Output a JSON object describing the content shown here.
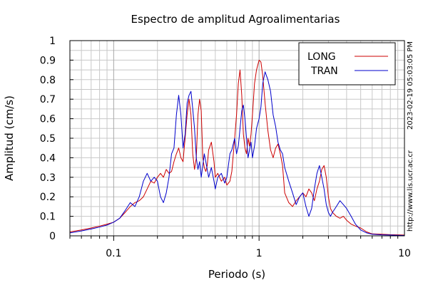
{
  "chart_data": {
    "type": "line",
    "title": "Espectro de amplitud Agroalimentarias",
    "xlabel": "Periodo (s)",
    "ylabel": "Amplitud (cm/s)",
    "x_scale": "log",
    "xlim": [
      0.05,
      10
    ],
    "ylim": [
      0,
      1
    ],
    "x_tick_labels": [
      "0.1",
      "1",
      "10"
    ],
    "x_tick_values": [
      0.1,
      1,
      10
    ],
    "y_tick_labels": [
      "0",
      "0.1",
      "0.2",
      "0.3",
      "0.4",
      "0.5",
      "0.6",
      "0.7",
      "0.8",
      "0.9",
      "1"
    ],
    "y_tick_values": [
      0,
      0.1,
      0.2,
      0.3,
      0.4,
      0.5,
      0.6,
      0.7,
      0.8,
      0.9,
      1
    ],
    "grid": true,
    "legend_position": "top-right",
    "timestamp": "2023-02-19 05:03:05 PM",
    "source_url": "http://www.lis.ucr.ac.cr",
    "series": [
      {
        "name": "LONG",
        "color": "#cc0000",
        "x": [
          0.05,
          0.06,
          0.07,
          0.08,
          0.09,
          0.1,
          0.11,
          0.12,
          0.13,
          0.14,
          0.15,
          0.16,
          0.17,
          0.18,
          0.19,
          0.2,
          0.21,
          0.22,
          0.23,
          0.24,
          0.25,
          0.26,
          0.27,
          0.28,
          0.29,
          0.3,
          0.31,
          0.32,
          0.33,
          0.34,
          0.35,
          0.36,
          0.37,
          0.38,
          0.39,
          0.4,
          0.41,
          0.42,
          0.43,
          0.44,
          0.45,
          0.47,
          0.49,
          0.5,
          0.52,
          0.55,
          0.58,
          0.6,
          0.63,
          0.65,
          0.68,
          0.7,
          0.72,
          0.74,
          0.76,
          0.78,
          0.8,
          0.82,
          0.84,
          0.86,
          0.88,
          0.9,
          0.93,
          0.96,
          1.0,
          1.03,
          1.06,
          1.1,
          1.15,
          1.2,
          1.25,
          1.3,
          1.35,
          1.4,
          1.45,
          1.5,
          1.6,
          1.7,
          1.8,
          1.9,
          2.0,
          2.1,
          2.2,
          2.3,
          2.4,
          2.5,
          2.6,
          2.7,
          2.8,
          2.9,
          3.0,
          3.1,
          3.2,
          3.4,
          3.6,
          3.8,
          4.0,
          4.3,
          4.6,
          5.0,
          5.5,
          6.0,
          7.0,
          8.0,
          9.0,
          10.0
        ],
        "y": [
          0.02,
          0.03,
          0.04,
          0.05,
          0.06,
          0.07,
          0.09,
          0.12,
          0.15,
          0.17,
          0.18,
          0.2,
          0.24,
          0.28,
          0.27,
          0.3,
          0.32,
          0.3,
          0.34,
          0.32,
          0.33,
          0.38,
          0.42,
          0.45,
          0.4,
          0.38,
          0.5,
          0.62,
          0.7,
          0.62,
          0.42,
          0.34,
          0.4,
          0.62,
          0.7,
          0.64,
          0.4,
          0.35,
          0.33,
          0.36,
          0.44,
          0.48,
          0.38,
          0.3,
          0.32,
          0.28,
          0.3,
          0.26,
          0.28,
          0.33,
          0.5,
          0.62,
          0.78,
          0.85,
          0.72,
          0.52,
          0.45,
          0.42,
          0.5,
          0.46,
          0.52,
          0.62,
          0.78,
          0.85,
          0.9,
          0.89,
          0.82,
          0.68,
          0.54,
          0.44,
          0.4,
          0.45,
          0.47,
          0.42,
          0.36,
          0.22,
          0.17,
          0.15,
          0.18,
          0.2,
          0.22,
          0.2,
          0.24,
          0.22,
          0.18,
          0.24,
          0.28,
          0.34,
          0.36,
          0.3,
          0.2,
          0.14,
          0.12,
          0.1,
          0.09,
          0.1,
          0.08,
          0.06,
          0.05,
          0.04,
          0.02,
          0.01,
          0.008,
          0.006,
          0.005,
          0.004
        ]
      },
      {
        "name": "TRAN",
        "color": "#0000cc",
        "x": [
          0.05,
          0.06,
          0.07,
          0.08,
          0.09,
          0.1,
          0.11,
          0.12,
          0.13,
          0.14,
          0.15,
          0.16,
          0.17,
          0.18,
          0.19,
          0.2,
          0.21,
          0.22,
          0.23,
          0.24,
          0.25,
          0.26,
          0.27,
          0.28,
          0.29,
          0.3,
          0.31,
          0.32,
          0.33,
          0.34,
          0.35,
          0.36,
          0.37,
          0.38,
          0.39,
          0.4,
          0.41,
          0.42,
          0.43,
          0.44,
          0.45,
          0.47,
          0.49,
          0.5,
          0.52,
          0.55,
          0.58,
          0.6,
          0.63,
          0.65,
          0.68,
          0.7,
          0.72,
          0.74,
          0.76,
          0.78,
          0.8,
          0.82,
          0.84,
          0.86,
          0.88,
          0.9,
          0.93,
          0.96,
          1.0,
          1.03,
          1.06,
          1.1,
          1.15,
          1.2,
          1.25,
          1.3,
          1.35,
          1.4,
          1.45,
          1.5,
          1.6,
          1.7,
          1.8,
          1.9,
          2.0,
          2.1,
          2.2,
          2.3,
          2.4,
          2.5,
          2.6,
          2.7,
          2.8,
          2.9,
          3.0,
          3.1,
          3.2,
          3.4,
          3.6,
          3.8,
          4.0,
          4.3,
          4.6,
          5.0,
          5.5,
          6.0,
          7.0,
          8.0,
          9.0,
          10.0
        ],
        "y": [
          0.015,
          0.025,
          0.035,
          0.045,
          0.055,
          0.07,
          0.09,
          0.13,
          0.17,
          0.15,
          0.2,
          0.28,
          0.32,
          0.28,
          0.3,
          0.28,
          0.2,
          0.17,
          0.22,
          0.3,
          0.42,
          0.45,
          0.62,
          0.72,
          0.62,
          0.45,
          0.52,
          0.68,
          0.72,
          0.74,
          0.65,
          0.55,
          0.4,
          0.34,
          0.38,
          0.3,
          0.36,
          0.42,
          0.38,
          0.34,
          0.3,
          0.35,
          0.28,
          0.24,
          0.3,
          0.32,
          0.27,
          0.3,
          0.42,
          0.44,
          0.5,
          0.42,
          0.46,
          0.55,
          0.64,
          0.67,
          0.6,
          0.5,
          0.4,
          0.44,
          0.48,
          0.4,
          0.46,
          0.55,
          0.6,
          0.66,
          0.78,
          0.84,
          0.8,
          0.74,
          0.62,
          0.56,
          0.48,
          0.44,
          0.42,
          0.35,
          0.28,
          0.22,
          0.16,
          0.2,
          0.22,
          0.15,
          0.1,
          0.14,
          0.24,
          0.32,
          0.36,
          0.3,
          0.24,
          0.16,
          0.12,
          0.1,
          0.12,
          0.15,
          0.18,
          0.16,
          0.14,
          0.1,
          0.06,
          0.03,
          0.015,
          0.008,
          0.005,
          0.004,
          0.003,
          0.002
        ]
      }
    ]
  }
}
